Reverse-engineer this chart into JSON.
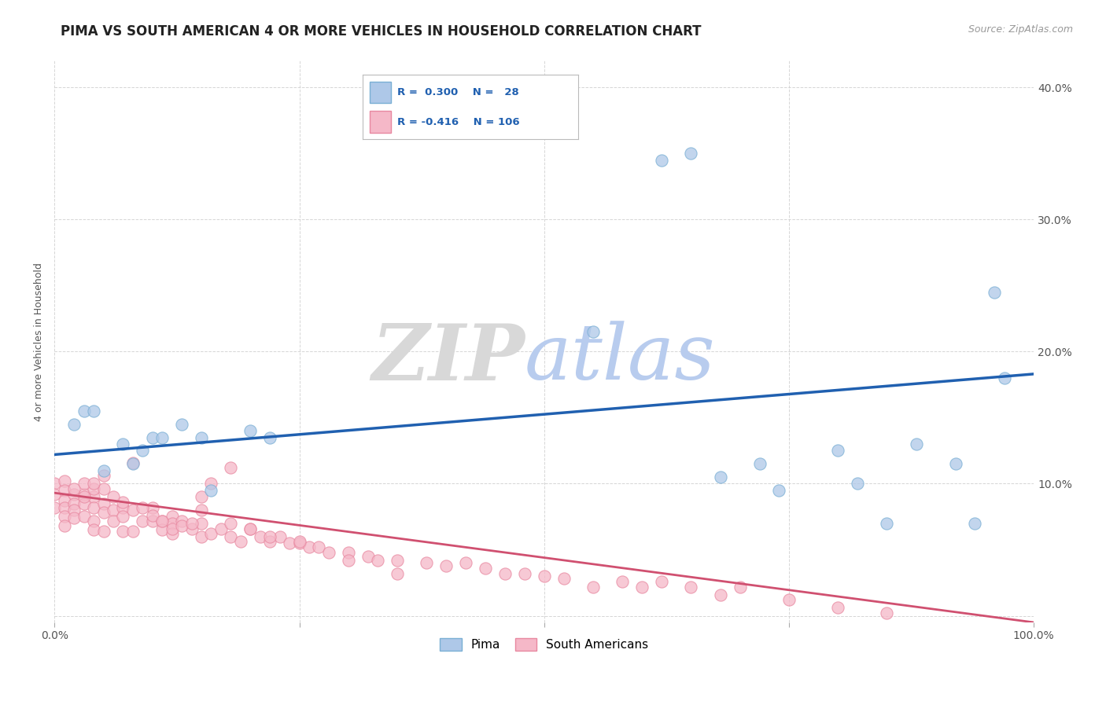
{
  "title": "PIMA VS SOUTH AMERICAN 4 OR MORE VEHICLES IN HOUSEHOLD CORRELATION CHART",
  "source_text": "Source: ZipAtlas.com",
  "ylabel": "4 or more Vehicles in Household",
  "xlim": [
    0.0,
    1.0
  ],
  "ylim": [
    -0.005,
    0.42
  ],
  "xticks": [
    0.0,
    0.25,
    0.5,
    0.75,
    1.0
  ],
  "xticklabels": [
    "0.0%",
    "",
    "",
    "",
    "100.0%"
  ],
  "yticks_right": [
    0.0,
    0.1,
    0.2,
    0.3,
    0.4
  ],
  "yticklabels_right": [
    "",
    "10.0%",
    "20.0%",
    "30.0%",
    "40.0%"
  ],
  "blue_scatter_color": "#aec8e8",
  "blue_edge_color": "#7aafd4",
  "pink_scatter_color": "#f5b8c8",
  "pink_edge_color": "#e888a0",
  "trend_blue_color": "#2060b0",
  "trend_pink_color": "#d05070",
  "watermark_zip_color": "#d8d8d8",
  "watermark_atlas_color": "#b8ccee",
  "background_color": "#ffffff",
  "grid_color": "#cccccc",
  "title_fontsize": 12,
  "axis_label_fontsize": 9,
  "tick_fontsize": 10,
  "legend_r_color": "#2060b0",
  "legend_n_color": "#2060b0",
  "blue_points_x": [
    0.02,
    0.03,
    0.04,
    0.05,
    0.07,
    0.08,
    0.09,
    0.1,
    0.11,
    0.13,
    0.15,
    0.16,
    0.2,
    0.22,
    0.55,
    0.62,
    0.65,
    0.68,
    0.72,
    0.74,
    0.8,
    0.82,
    0.85,
    0.88,
    0.92,
    0.94,
    0.96,
    0.97
  ],
  "blue_points_y": [
    0.145,
    0.155,
    0.155,
    0.11,
    0.13,
    0.115,
    0.125,
    0.135,
    0.135,
    0.145,
    0.135,
    0.095,
    0.14,
    0.135,
    0.215,
    0.345,
    0.35,
    0.105,
    0.115,
    0.095,
    0.125,
    0.1,
    0.07,
    0.13,
    0.115,
    0.07,
    0.245,
    0.18
  ],
  "pink_points_x": [
    0.0,
    0.0,
    0.0,
    0.01,
    0.01,
    0.01,
    0.01,
    0.01,
    0.01,
    0.02,
    0.02,
    0.02,
    0.02,
    0.03,
    0.03,
    0.03,
    0.04,
    0.04,
    0.04,
    0.04,
    0.05,
    0.05,
    0.05,
    0.06,
    0.06,
    0.07,
    0.07,
    0.07,
    0.08,
    0.08,
    0.09,
    0.1,
    0.1,
    0.11,
    0.11,
    0.12,
    0.12,
    0.12,
    0.13,
    0.14,
    0.15,
    0.15,
    0.16,
    0.17,
    0.18,
    0.19,
    0.2,
    0.21,
    0.22,
    0.23,
    0.24,
    0.25,
    0.26,
    0.27,
    0.28,
    0.3,
    0.32,
    0.33,
    0.35,
    0.38,
    0.4,
    0.42,
    0.44,
    0.46,
    0.48,
    0.5,
    0.52,
    0.55,
    0.58,
    0.6,
    0.62,
    0.65,
    0.68,
    0.7,
    0.75,
    0.8,
    0.85,
    0.18,
    0.16,
    0.15,
    0.08,
    0.05,
    0.04,
    0.03,
    0.03,
    0.02,
    0.1,
    0.11,
    0.12,
    0.09,
    0.07,
    0.06,
    0.05,
    0.04,
    0.25,
    0.22,
    0.2,
    0.18,
    0.15,
    0.3,
    0.35,
    0.13,
    0.14
  ],
  "pink_points_y": [
    0.1,
    0.092,
    0.082,
    0.102,
    0.095,
    0.087,
    0.082,
    0.075,
    0.068,
    0.092,
    0.085,
    0.08,
    0.074,
    0.092,
    0.085,
    0.075,
    0.09,
    0.082,
    0.072,
    0.065,
    0.085,
    0.078,
    0.064,
    0.08,
    0.072,
    0.082,
    0.075,
    0.064,
    0.08,
    0.064,
    0.072,
    0.082,
    0.072,
    0.072,
    0.065,
    0.075,
    0.07,
    0.062,
    0.072,
    0.066,
    0.07,
    0.06,
    0.062,
    0.066,
    0.06,
    0.056,
    0.066,
    0.06,
    0.056,
    0.06,
    0.055,
    0.055,
    0.052,
    0.052,
    0.048,
    0.048,
    0.045,
    0.042,
    0.042,
    0.04,
    0.038,
    0.04,
    0.036,
    0.032,
    0.032,
    0.03,
    0.028,
    0.022,
    0.026,
    0.022,
    0.026,
    0.022,
    0.016,
    0.022,
    0.012,
    0.006,
    0.002,
    0.112,
    0.1,
    0.09,
    0.116,
    0.106,
    0.096,
    0.1,
    0.09,
    0.096,
    0.076,
    0.072,
    0.066,
    0.082,
    0.086,
    0.09,
    0.096,
    0.1,
    0.056,
    0.06,
    0.066,
    0.07,
    0.08,
    0.042,
    0.032,
    0.068,
    0.07
  ],
  "blue_trend_y_start": 0.122,
  "blue_trend_y_end": 0.183,
  "pink_trend_y_start": 0.093,
  "pink_trend_y_end": -0.005
}
